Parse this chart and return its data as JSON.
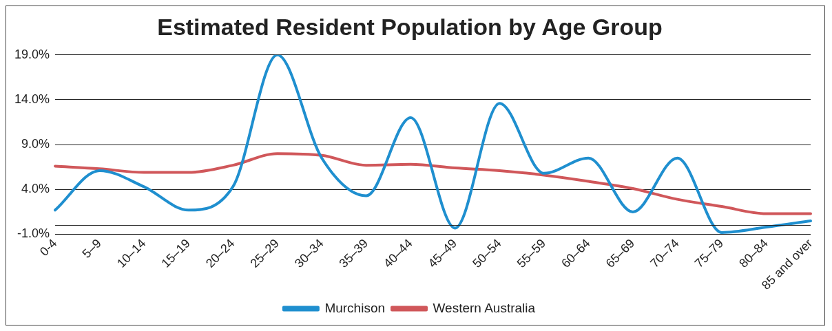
{
  "chart_data": {
    "type": "line",
    "title": "Estimated Resident Population by Age Group",
    "categories": [
      "0-4",
      "5–9",
      "10–14",
      "15–19",
      "20–24",
      "25–29",
      "30–34",
      "35–39",
      "40–44",
      "45–49",
      "50–54",
      "55–59",
      "60–64",
      "65–69",
      "70–74",
      "75–79",
      "80–84",
      "85 and over"
    ],
    "series": [
      {
        "name": "Murchison",
        "color": "#1f8fcf",
        "values": [
          1.7,
          6.1,
          4.3,
          1.7,
          4.3,
          19.0,
          7.5,
          3.3,
          12.0,
          -0.3,
          13.6,
          5.8,
          7.5,
          1.5,
          7.5,
          -0.8,
          -0.2,
          0.5
        ]
      },
      {
        "name": "Western Australia",
        "color": "#d0575a",
        "values": [
          6.6,
          6.3,
          5.9,
          5.9,
          6.7,
          8.0,
          7.8,
          6.7,
          6.8,
          6.4,
          6.1,
          5.6,
          4.9,
          4.1,
          2.9,
          2.1,
          1.3,
          1.3
        ]
      }
    ],
    "ylim": [
      -1,
      19
    ],
    "yticks": [
      {
        "value": -1,
        "label": "-1.0%"
      },
      {
        "value": 4,
        "label": "4.0%"
      },
      {
        "value": 9,
        "label": "9.0%"
      },
      {
        "value": 14,
        "label": "14.0%"
      },
      {
        "value": 19,
        "label": "19.0%"
      }
    ],
    "ref_lines": [
      {
        "axis": "y",
        "value": 0
      }
    ],
    "grid": "y",
    "legend": "bottom",
    "marker": "none",
    "line_style": "solid"
  }
}
